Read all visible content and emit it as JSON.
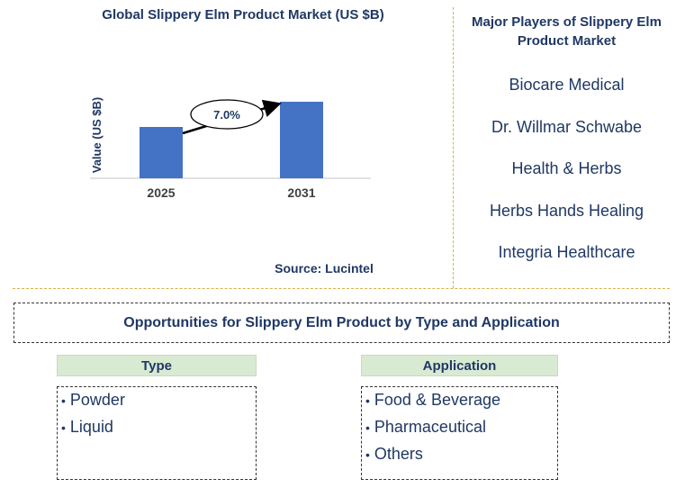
{
  "chart_data": {
    "type": "bar",
    "title": "Global Slippery Elm Product Market (US $B)",
    "ylabel": "Value (US $B)",
    "categories": [
      "2025",
      "2031"
    ],
    "values": [
      0.057,
      0.085
    ],
    "ylim": [
      0,
      0.1
    ],
    "annotation": "7.0%",
    "source": "Source: Lucintel",
    "bar_color": "#4472c4"
  },
  "players": {
    "title": "Major Players of Slippery Elm Product Market",
    "items": [
      "Biocare Medical",
      "Dr. Willmar Schwabe",
      "Health & Herbs",
      "Herbs Hands Healing",
      "Integria Healthcare"
    ]
  },
  "opportunities": {
    "title": "Opportunities for Slippery Elm Product by Type and Application",
    "type": {
      "header": "Type",
      "items": [
        "Powder",
        "Liquid"
      ]
    },
    "application": {
      "header": "Application",
      "items": [
        "Food & Beverage",
        "Pharmaceutical",
        "Others"
      ]
    }
  },
  "colors": {
    "title": "#1f3864",
    "divider": "#d4b24a",
    "header_bg": "#d9ead3"
  }
}
